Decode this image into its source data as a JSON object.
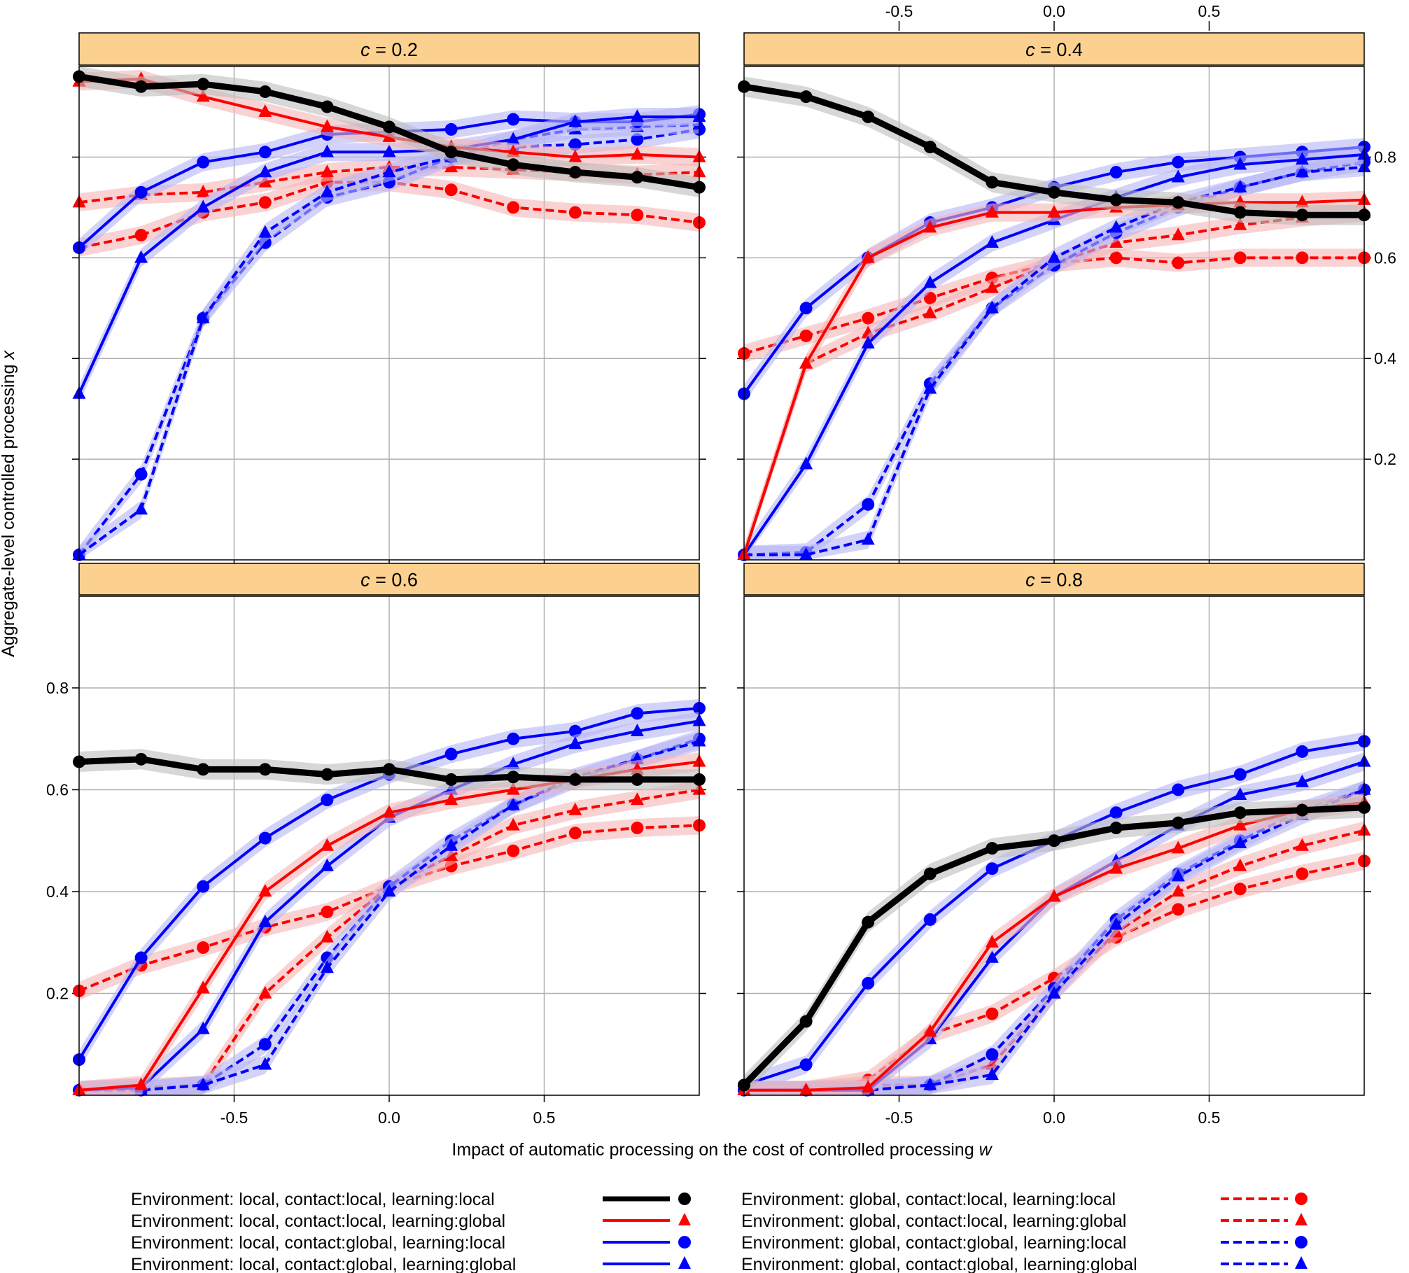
{
  "chart_data": {
    "type": "line",
    "layout": "2x2 lattice",
    "xlabel": "Impact of automatic processing on the cost of controlled processing w",
    "ylabel": "Aggregate-level controlled processing x",
    "x": [
      -1.0,
      -0.8,
      -0.6,
      -0.4,
      -0.2,
      0.0,
      0.2,
      0.4,
      0.6,
      0.8,
      1.0
    ],
    "xlim": [
      -1.0,
      1.0
    ],
    "ylim": [
      0.0,
      0.98
    ],
    "xticks": [
      -0.5,
      0.0,
      0.5
    ],
    "xtick_labels": [
      "-0.5",
      "0.0",
      "0.5"
    ],
    "yticks": [
      0.2,
      0.4,
      0.6,
      0.8
    ],
    "ytick_labels": [
      "0.2",
      "0.4",
      "0.6",
      "0.8"
    ],
    "grid": true,
    "strip_color": "#FCD08F",
    "series_styles": [
      {
        "key": "ll_ll",
        "color": "#000000",
        "dashed": false,
        "marker": "circle",
        "width": "heavy",
        "band": "#bdbdbd"
      },
      {
        "key": "ll_lg",
        "color": "#FF0000",
        "dashed": false,
        "marker": "triangle",
        "width": "normal",
        "band": "#f5b5b5"
      },
      {
        "key": "lg_ll",
        "color": "#0000FF",
        "dashed": false,
        "marker": "circle",
        "width": "normal",
        "band": "#b6b6f7"
      },
      {
        "key": "lg_lg",
        "color": "#0000FF",
        "dashed": false,
        "marker": "triangle",
        "width": "normal",
        "band": "#b6b6f7"
      },
      {
        "key": "gl_ll",
        "color": "#FF0000",
        "dashed": true,
        "marker": "circle",
        "width": "normal",
        "band": "#f5b5b5"
      },
      {
        "key": "gl_lg",
        "color": "#FF0000",
        "dashed": true,
        "marker": "triangle",
        "width": "normal",
        "band": "#f5b5b5"
      },
      {
        "key": "gg_ll",
        "color": "#0000FF",
        "dashed": true,
        "marker": "circle",
        "width": "normal",
        "band": "#b6b6f7"
      },
      {
        "key": "gg_lg",
        "color": "#0000FF",
        "dashed": true,
        "marker": "triangle",
        "width": "normal",
        "band": "#b6b6f7"
      }
    ],
    "panels": [
      {
        "strip": {
          "prefix": "c",
          "value": " = 0.2"
        },
        "series": [
          {
            "name": "Environment: local, contact:local, learning:local",
            "values": [
              0.96,
              0.94,
              0.945,
              0.93,
              0.9,
              0.86,
              0.81,
              0.785,
              0.77,
              0.76,
              0.74
            ]
          },
          {
            "name": "Environment: local, contact:local, learning:global",
            "values": [
              0.95,
              0.955,
              0.92,
              0.89,
              0.86,
              0.84,
              0.82,
              0.81,
              0.8,
              0.805,
              0.8
            ]
          },
          {
            "name": "Environment: local, contact:global, learning:local",
            "values": [
              0.62,
              0.73,
              0.79,
              0.81,
              0.845,
              0.85,
              0.855,
              0.875,
              0.87,
              0.87,
              0.885
            ]
          },
          {
            "name": "Environment: local, contact:global, learning:global",
            "values": [
              0.33,
              0.6,
              0.7,
              0.77,
              0.81,
              0.81,
              0.815,
              0.835,
              0.87,
              0.88,
              0.88
            ]
          },
          {
            "name": "Environment: global, contact:local, learning:local",
            "values": [
              0.62,
              0.645,
              0.69,
              0.71,
              0.75,
              0.75,
              0.735,
              0.7,
              0.69,
              0.685,
              0.67
            ]
          },
          {
            "name": "Environment: global, contact:local, learning:global",
            "values": [
              0.71,
              0.725,
              0.73,
              0.75,
              0.77,
              0.78,
              0.78,
              0.775,
              0.77,
              0.765,
              0.77
            ]
          },
          {
            "name": "Environment: global, contact:global, learning:local",
            "values": [
              0.01,
              0.17,
              0.48,
              0.63,
              0.72,
              0.75,
              0.8,
              0.82,
              0.825,
              0.835,
              0.855
            ]
          },
          {
            "name": "Environment: global, contact:global, learning:global",
            "values": [
              0.01,
              0.1,
              0.48,
              0.65,
              0.73,
              0.77,
              0.8,
              0.835,
              0.855,
              0.86,
              0.865
            ]
          }
        ]
      },
      {
        "strip": {
          "prefix": "c",
          "value": " = 0.4"
        },
        "series": [
          {
            "name": "Environment: local, contact:local, learning:local",
            "values": [
              0.94,
              0.92,
              0.88,
              0.82,
              0.75,
              0.73,
              0.715,
              0.71,
              0.69,
              0.685,
              0.685
            ]
          },
          {
            "name": "Environment: local, contact:local, learning:global",
            "values": [
              0.01,
              0.39,
              0.6,
              0.66,
              0.69,
              0.69,
              0.7,
              0.705,
              0.71,
              0.71,
              0.715
            ]
          },
          {
            "name": "Environment: local, contact:global, learning:local",
            "values": [
              0.33,
              0.5,
              0.6,
              0.67,
              0.7,
              0.74,
              0.77,
              0.79,
              0.8,
              0.81,
              0.82
            ]
          },
          {
            "name": "Environment: local, contact:global, learning:global",
            "values": [
              0.01,
              0.19,
              0.43,
              0.55,
              0.63,
              0.675,
              0.72,
              0.76,
              0.785,
              0.795,
              0.805
            ]
          },
          {
            "name": "Environment: global, contact:local, learning:local",
            "values": [
              0.41,
              0.445,
              0.48,
              0.52,
              0.56,
              0.59,
              0.6,
              0.59,
              0.6,
              0.6,
              0.6
            ]
          },
          {
            "name": "Environment: global, contact:local, learning:global",
            "values": [
              0.01,
              0.39,
              0.45,
              0.49,
              0.54,
              0.59,
              0.63,
              0.645,
              0.665,
              0.68,
              0.69
            ]
          },
          {
            "name": "Environment: global, contact:global, learning:local",
            "values": [
              0.01,
              0.015,
              0.11,
              0.35,
              0.5,
              0.585,
              0.65,
              0.7,
              0.74,
              0.77,
              0.79
            ]
          },
          {
            "name": "Environment: global, contact:global, learning:global",
            "values": [
              0.01,
              0.01,
              0.04,
              0.34,
              0.5,
              0.6,
              0.66,
              0.71,
              0.74,
              0.77,
              0.78
            ]
          }
        ]
      },
      {
        "strip": {
          "prefix": "c",
          "value": " = 0.6"
        },
        "series": [
          {
            "name": "Environment: local, contact:local, learning:local",
            "values": [
              0.655,
              0.66,
              0.64,
              0.64,
              0.63,
              0.64,
              0.62,
              0.625,
              0.62,
              0.62,
              0.62
            ]
          },
          {
            "name": "Environment: local, contact:local, learning:global",
            "values": [
              0.01,
              0.02,
              0.21,
              0.4,
              0.49,
              0.555,
              0.58,
              0.6,
              0.62,
              0.64,
              0.655
            ]
          },
          {
            "name": "Environment: local, contact:global, learning:local",
            "values": [
              0.07,
              0.27,
              0.41,
              0.505,
              0.58,
              0.63,
              0.67,
              0.7,
              0.715,
              0.75,
              0.76
            ]
          },
          {
            "name": "Environment: local, contact:global, learning:global",
            "values": [
              0.01,
              0.015,
              0.13,
              0.34,
              0.45,
              0.545,
              0.6,
              0.65,
              0.69,
              0.715,
              0.735
            ]
          },
          {
            "name": "Environment: global, contact:local, learning:local",
            "values": [
              0.205,
              0.255,
              0.29,
              0.33,
              0.36,
              0.41,
              0.45,
              0.48,
              0.515,
              0.525,
              0.53
            ]
          },
          {
            "name": "Environment: global, contact:local, learning:global",
            "values": [
              0.01,
              0.015,
              0.02,
              0.2,
              0.31,
              0.41,
              0.47,
              0.53,
              0.56,
              0.58,
              0.6
            ]
          },
          {
            "name": "Environment: global, contact:global, learning:local",
            "values": [
              0.01,
              0.01,
              0.02,
              0.1,
              0.27,
              0.41,
              0.5,
              0.57,
              0.62,
              0.66,
              0.7
            ]
          },
          {
            "name": "Environment: global, contact:global, learning:global",
            "values": [
              0.01,
              0.01,
              0.02,
              0.06,
              0.25,
              0.4,
              0.49,
              0.57,
              0.625,
              0.66,
              0.695
            ]
          }
        ]
      },
      {
        "strip": {
          "prefix": "c",
          "value": " = 0.8"
        },
        "series": [
          {
            "name": "Environment: local, contact:local, learning:local",
            "values": [
              0.02,
              0.145,
              0.34,
              0.435,
              0.485,
              0.5,
              0.525,
              0.535,
              0.555,
              0.56,
              0.565
            ]
          },
          {
            "name": "Environment: local, contact:local, learning:global",
            "values": [
              0.01,
              0.01,
              0.015,
              0.125,
              0.3,
              0.39,
              0.445,
              0.485,
              0.53,
              0.56,
              0.575
            ]
          },
          {
            "name": "Environment: local, contact:global, learning:local",
            "values": [
              0.02,
              0.06,
              0.22,
              0.345,
              0.445,
              0.5,
              0.555,
              0.6,
              0.63,
              0.675,
              0.695
            ]
          },
          {
            "name": "Environment: local, contact:global, learning:global",
            "values": [
              0.01,
              0.01,
              0.01,
              0.11,
              0.27,
              0.39,
              0.46,
              0.53,
              0.59,
              0.615,
              0.655
            ]
          },
          {
            "name": "Environment: global, contact:local, learning:local",
            "values": [
              0.01,
              0.01,
              0.03,
              0.12,
              0.16,
              0.23,
              0.31,
              0.365,
              0.405,
              0.435,
              0.46
            ]
          },
          {
            "name": "Environment: global, contact:local, learning:global",
            "values": [
              0.01,
              0.01,
              0.02,
              0.02,
              0.06,
              0.2,
              0.32,
              0.4,
              0.45,
              0.49,
              0.52
            ]
          },
          {
            "name": "Environment: global, contact:global, learning:local",
            "values": [
              0.01,
              0.01,
              0.01,
              0.02,
              0.08,
              0.21,
              0.345,
              0.435,
              0.5,
              0.56,
              0.6
            ]
          },
          {
            "name": "Environment: global, contact:global, learning:global",
            "values": [
              0.01,
              0.01,
              0.01,
              0.02,
              0.04,
              0.2,
              0.335,
              0.43,
              0.495,
              0.55,
              0.6
            ]
          }
        ]
      }
    ],
    "legend": {
      "position": "bottom",
      "entries": [
        "Environment: local, contact:local, learning:local",
        "Environment: local, contact:local, learning:global",
        "Environment: local, contact:global, learning:local",
        "Environment: local, contact:global, learning:global",
        "Environment: global, contact:local, learning:local",
        "Environment: global, contact:local, learning:global",
        "Environment: global, contact:global, learning:local",
        "Environment: global, contact:global, learning:global"
      ]
    }
  }
}
